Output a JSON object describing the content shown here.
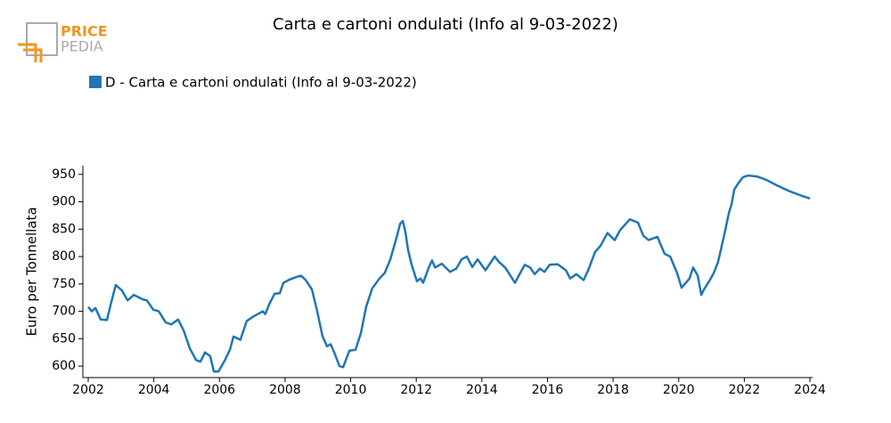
{
  "logo": {
    "line1": "PRICE",
    "line2": "PEDIA"
  },
  "chart_data": {
    "type": "line",
    "title": "Carta e cartoni ondulati (Info al 9-03-2022)",
    "y_label": "Euro per Tonnellata",
    "xlim": [
      2002,
      2024
    ],
    "xticks": [
      2002,
      2004,
      2006,
      2008,
      2010,
      2012,
      2014,
      2016,
      2018,
      2020,
      2022,
      2024
    ],
    "ylim": [
      579,
      966
    ],
    "yticks": [
      600,
      650,
      700,
      750,
      800,
      850,
      900,
      950
    ],
    "grid": false,
    "legend": "top-left",
    "x": [
      2002.0,
      2002.11,
      2002.22,
      2002.38,
      2002.57,
      2002.71,
      2002.84,
      2003.03,
      2003.2,
      2003.39,
      2003.66,
      2003.79,
      2003.98,
      2004.15,
      2004.36,
      2004.53,
      2004.74,
      2004.91,
      2005.1,
      2005.29,
      2005.42,
      2005.56,
      2005.72,
      2005.83,
      2005.97,
      2006.16,
      2006.32,
      2006.43,
      2006.64,
      2006.83,
      2007.02,
      2007.32,
      2007.4,
      2007.51,
      2007.68,
      2007.84,
      2007.95,
      2008.14,
      2008.36,
      2008.49,
      2008.63,
      2008.82,
      2008.98,
      2009.14,
      2009.28,
      2009.39,
      2009.5,
      2009.66,
      2009.77,
      2009.96,
      2010.15,
      2010.31,
      2010.47,
      2010.66,
      2010.88,
      2011.04,
      2011.21,
      2011.4,
      2011.51,
      2011.59,
      2011.67,
      2011.75,
      2011.86,
      2012.02,
      2012.13,
      2012.21,
      2012.38,
      2012.48,
      2012.57,
      2012.78,
      2013.03,
      2013.22,
      2013.38,
      2013.54,
      2013.71,
      2013.87,
      2014.11,
      2014.39,
      2014.52,
      2014.71,
      2015.01,
      2015.17,
      2015.31,
      2015.47,
      2015.61,
      2015.77,
      2015.91,
      2016.07,
      2016.31,
      2016.56,
      2016.69,
      2016.88,
      2017.1,
      2017.24,
      2017.45,
      2017.62,
      2017.83,
      2018.05,
      2018.21,
      2018.51,
      2018.76,
      2018.92,
      2019.08,
      2019.35,
      2019.57,
      2019.74,
      2019.95,
      2020.09,
      2020.33,
      2020.44,
      2020.58,
      2020.69,
      2020.79,
      2020.93,
      2021.07,
      2021.2,
      2021.39,
      2021.53,
      2021.61,
      2021.69,
      2021.83,
      2021.96,
      2022.12,
      2022.4,
      2022.67,
      2022.99,
      2023.35,
      2023.7,
      2024.0
    ],
    "series": [
      {
        "name": "D - Carta e cartoni ondulati (Info al 9-03-2022)",
        "color": "#1f77b4",
        "values": [
          708,
          700,
          706,
          685,
          684,
          718,
          748,
          738,
          720,
          730,
          722,
          720,
          703,
          700,
          680,
          676,
          685,
          665,
          632,
          611,
          608,
          625,
          618,
          590,
          590,
          610,
          630,
          654,
          648,
          682,
          690,
          700,
          695,
          712,
          732,
          733,
          752,
          758,
          763,
          765,
          757,
          740,
          700,
          655,
          636,
          640,
          625,
          600,
          598,
          628,
          630,
          660,
          708,
          742,
          760,
          770,
          795,
          835,
          860,
          865,
          845,
          812,
          785,
          755,
          760,
          752,
          780,
          793,
          780,
          787,
          772,
          778,
          795,
          800,
          781,
          795,
          775,
          800,
          790,
          780,
          752,
          770,
          785,
          780,
          768,
          778,
          772,
          785,
          786,
          775,
          760,
          768,
          757,
          775,
          808,
          820,
          843,
          830,
          848,
          868,
          862,
          838,
          830,
          836,
          805,
          800,
          770,
          743,
          760,
          780,
          765,
          730,
          742,
          755,
          770,
          790,
          840,
          880,
          895,
          922,
          935,
          945,
          948,
          946,
          940,
          930,
          920,
          912,
          906
        ]
      }
    ]
  }
}
